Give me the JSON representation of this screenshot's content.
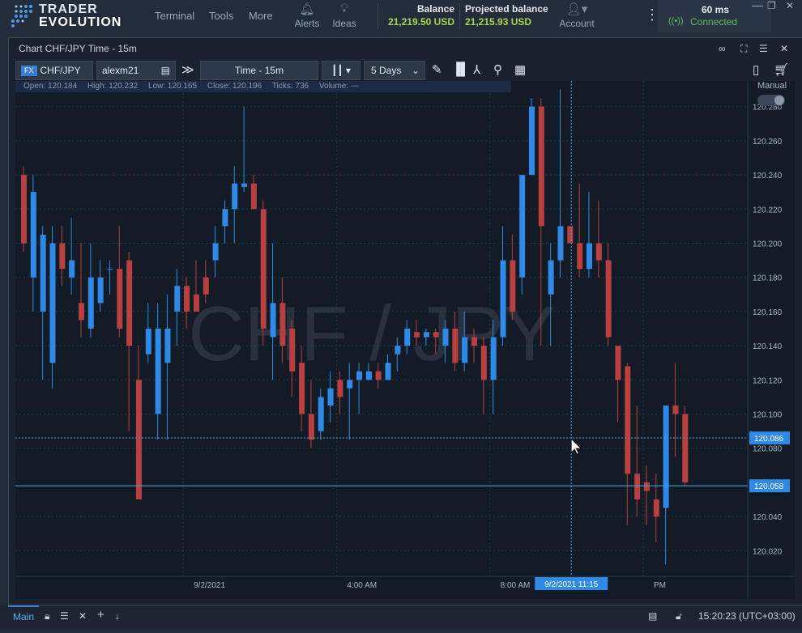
{
  "app": {
    "brand_line1": "TRADER",
    "brand_line2": "EVOLUTION"
  },
  "nav": {
    "terminal": "Terminal",
    "tools": "Tools",
    "more": "More",
    "alerts": "Alerts",
    "ideas": "Ideas",
    "account": "Account"
  },
  "balance": {
    "label": "Balance",
    "value": "21,219.50 USD",
    "projected_label": "Projected balance",
    "projected_value": "21,215.93 USD"
  },
  "status": {
    "latency": "60 ms",
    "connection": "Connected"
  },
  "panel": {
    "title": "Chart CHF/JPY Time - 15m"
  },
  "toolbar": {
    "fx_tag": "FX",
    "symbol": "CHF/JPY",
    "account": "alexm21",
    "timeframe": "Time - 15m",
    "range": "5 Days"
  },
  "ohlc": {
    "open": "Open:  120.184",
    "high": "High:  120.232",
    "low": "Low:  120.165",
    "close": "Close:  120.196",
    "ticks": "Ticks:  736",
    "volume": "Volume:  ---"
  },
  "manual_label": "Manual",
  "colors": {
    "up": "#2e8ae6",
    "down": "#b8403e",
    "bg": "#131b27",
    "grid": "#2a3546",
    "cross": "#4aa3df"
  },
  "chart_data": {
    "type": "candlestick",
    "watermark": "CHF / JPY",
    "y_range": [
      120.005,
      120.295
    ],
    "y_ticks": [
      "120.280",
      "120.260",
      "120.240",
      "120.220",
      "120.200",
      "120.180",
      "120.160",
      "120.140",
      "120.120",
      "120.100",
      "120.080",
      "120.040",
      "120.020"
    ],
    "price_labels": {
      "crosshair": "120.086",
      "last": "120.058"
    },
    "x_labels": [
      {
        "text": "9/2/2021",
        "at": 17
      },
      {
        "text": "4:00 AM",
        "at": 33
      },
      {
        "text": "8:00 AM",
        "at": 49
      },
      {
        "text": "PM",
        "at": 65
      }
    ],
    "crosshair_time": "9/2/2021 11:15",
    "crosshair_index": 57.5,
    "last_price": 120.058,
    "crosshair_price": 120.086,
    "candles": [
      [
        120.24,
        120.2,
        120.245,
        120.195
      ],
      [
        120.18,
        120.23,
        120.24,
        120.16
      ],
      [
        120.16,
        120.205,
        120.21,
        120.12
      ],
      [
        120.13,
        120.2,
        120.21,
        120.115
      ],
      [
        120.2,
        120.185,
        120.21,
        120.175
      ],
      [
        120.18,
        120.19,
        120.215,
        120.17
      ],
      [
        120.165,
        120.155,
        120.2,
        120.145
      ],
      [
        120.15,
        120.18,
        120.2,
        120.145
      ],
      [
        120.165,
        120.18,
        120.19,
        120.16
      ],
      [
        120.185,
        120.185,
        120.19,
        120.17
      ],
      [
        120.185,
        120.15,
        120.21,
        120.145
      ],
      [
        120.19,
        120.14,
        120.195,
        120.09
      ],
      [
        120.12,
        120.05,
        120.14,
        120.05
      ],
      [
        120.135,
        120.15,
        120.165,
        120.13
      ],
      [
        120.1,
        120.15,
        120.165,
        120.085
      ],
      [
        120.13,
        120.15,
        120.17,
        120.085
      ],
      [
        120.16,
        120.175,
        120.185,
        120.14
      ],
      [
        120.175,
        120.16,
        120.18,
        120.15
      ],
      [
        120.17,
        120.16,
        120.19,
        120.16
      ],
      [
        120.18,
        120.17,
        120.19,
        120.165
      ],
      [
        120.19,
        120.2,
        120.21,
        120.18
      ],
      [
        120.21,
        120.22,
        120.225,
        120.2
      ],
      [
        120.22,
        120.235,
        120.245,
        120.2
      ],
      [
        120.233,
        120.235,
        120.28,
        120.23
      ],
      [
        120.235,
        120.22,
        120.24,
        120.22
      ],
      [
        120.22,
        120.15,
        120.225,
        120.14
      ],
      [
        120.145,
        120.165,
        120.2,
        120.12
      ],
      [
        120.165,
        120.14,
        120.18,
        120.13
      ],
      [
        120.15,
        120.125,
        120.155,
        120.11
      ],
      [
        120.13,
        120.1,
        120.14,
        120.09
      ],
      [
        120.1,
        120.085,
        120.12,
        120.08
      ],
      [
        120.09,
        120.11,
        120.115,
        120.085
      ],
      [
        120.105,
        120.115,
        120.125,
        120.095
      ],
      [
        120.12,
        120.11,
        120.125,
        120.1
      ],
      [
        120.115,
        120.12,
        120.13,
        120.085
      ],
      [
        120.12,
        120.125,
        120.13,
        120.1
      ],
      [
        120.12,
        120.125,
        120.13,
        120.12
      ],
      [
        120.125,
        120.12,
        120.13,
        120.115
      ],
      [
        120.12,
        120.13,
        120.135,
        120.12
      ],
      [
        120.135,
        120.14,
        120.145,
        120.125
      ],
      [
        120.14,
        120.15,
        120.155,
        120.135
      ],
      [
        120.148,
        120.145,
        120.155,
        120.14
      ],
      [
        120.145,
        120.148,
        120.15,
        120.14
      ],
      [
        120.148,
        120.145,
        120.15,
        120.135
      ],
      [
        120.14,
        120.15,
        120.155,
        120.13
      ],
      [
        120.15,
        120.13,
        120.16,
        120.125
      ],
      [
        120.13,
        120.145,
        120.16,
        120.125
      ],
      [
        120.145,
        120.14,
        120.15,
        120.13
      ],
      [
        120.14,
        120.12,
        120.145,
        120.1
      ],
      [
        120.12,
        120.145,
        120.155,
        120.1
      ],
      [
        120.145,
        120.19,
        120.21,
        120.14
      ],
      [
        120.19,
        120.16,
        120.205,
        120.155
      ],
      [
        120.18,
        120.24,
        120.24,
        120.17
      ],
      [
        120.24,
        120.28,
        120.285,
        120.24
      ],
      [
        120.28,
        120.21,
        120.285,
        120.14
      ],
      [
        120.17,
        120.19,
        120.2,
        120.14
      ],
      [
        120.19,
        120.21,
        120.29,
        120.18
      ],
      [
        120.21,
        120.2,
        120.21,
        120.2
      ],
      [
        120.2,
        120.185,
        120.235,
        120.18
      ],
      [
        120.185,
        120.2,
        120.23,
        120.18
      ],
      [
        120.2,
        120.19,
        120.225,
        120.18
      ],
      [
        120.19,
        120.145,
        120.2,
        120.14
      ],
      [
        120.14,
        120.12,
        120.14,
        120.095
      ],
      [
        120.128,
        120.065,
        120.13,
        120.035
      ],
      [
        120.065,
        120.05,
        120.105,
        120.04
      ],
      [
        120.06,
        120.055,
        120.07,
        120.035
      ],
      [
        120.05,
        120.04,
        120.065,
        120.025
      ],
      [
        120.045,
        120.105,
        120.105,
        120.012
      ],
      [
        120.105,
        120.1,
        120.13,
        120.075
      ],
      [
        120.1,
        120.06,
        120.105,
        120.058
      ]
    ]
  }
}
